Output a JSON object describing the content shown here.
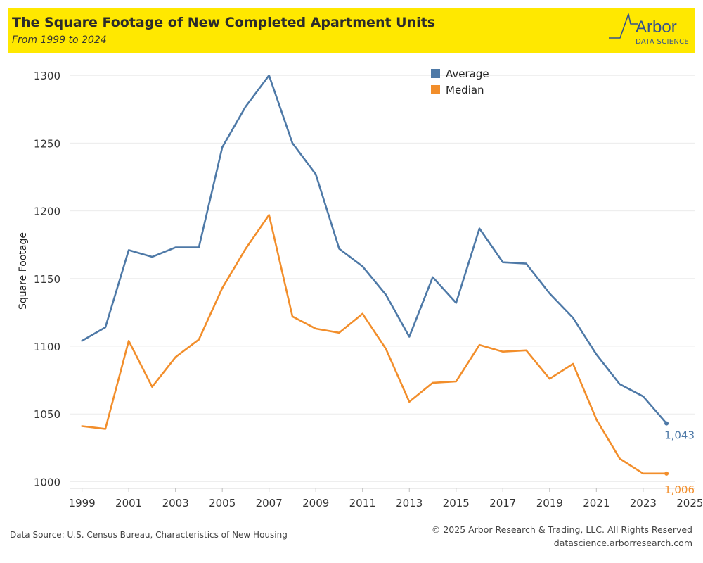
{
  "header": {
    "title": "The Square Footage of New Completed Apartment Units",
    "subtitle": "From 1999 to 2024"
  },
  "logo": {
    "wordmark": "Arbor",
    "subtitle": "DATA SCIENCE"
  },
  "footer": {
    "source": "Data Source: U.S. Census Bureau, Characteristics of New Housing",
    "copyright": "© 2025 Arbor Research & Trading, LLC. All Rights Reserved",
    "url": "datascience.arborresearch.com"
  },
  "colors": {
    "banner": "#ffe800",
    "average": "#4e79a7",
    "median": "#f28e2b",
    "logo": "#34528c"
  },
  "chart_data": {
    "type": "line",
    "title": "The Square Footage of New Completed Apartment Units",
    "subtitle": "From 1999 to 2024",
    "xlabel": "",
    "ylabel": "Square Footage",
    "x": [
      1999,
      2000,
      2001,
      2002,
      2003,
      2004,
      2005,
      2006,
      2007,
      2008,
      2009,
      2010,
      2011,
      2012,
      2013,
      2014,
      2015,
      2016,
      2017,
      2018,
      2019,
      2020,
      2021,
      2022,
      2023,
      2024
    ],
    "x_ticks": [
      "1999",
      "2001",
      "2003",
      "2005",
      "2007",
      "2009",
      "2011",
      "2013",
      "2015",
      "2017",
      "2019",
      "2021",
      "2023",
      "2025"
    ],
    "xlim": [
      1998.5,
      2025.2
    ],
    "y_ticks": [
      "1000",
      "1050",
      "1100",
      "1150",
      "1200",
      "1250",
      "1300"
    ],
    "ylim": [
      995,
      1310
    ],
    "grid": "horizontal",
    "legend_position": "top-center",
    "series": [
      {
        "name": "Average",
        "color": "#4e79a7",
        "values": [
          1104,
          1114,
          1171,
          1166,
          1173,
          1173,
          1247,
          1277,
          1300,
          1250,
          1227,
          1172,
          1159,
          1138,
          1107,
          1151,
          1132,
          1187,
          1162,
          1161,
          1139,
          1121,
          1094,
          1072,
          1063,
          1043
        ],
        "end_label": "1,043"
      },
      {
        "name": "Median",
        "color": "#f28e2b",
        "values": [
          1041,
          1039,
          1104,
          1070,
          1092,
          1105,
          1143,
          1172,
          1197,
          1122,
          1113,
          1110,
          1124,
          1098,
          1059,
          1073,
          1074,
          1101,
          1096,
          1097,
          1076,
          1087,
          1046,
          1017,
          1006,
          1006
        ],
        "end_label": "1,006"
      }
    ]
  }
}
